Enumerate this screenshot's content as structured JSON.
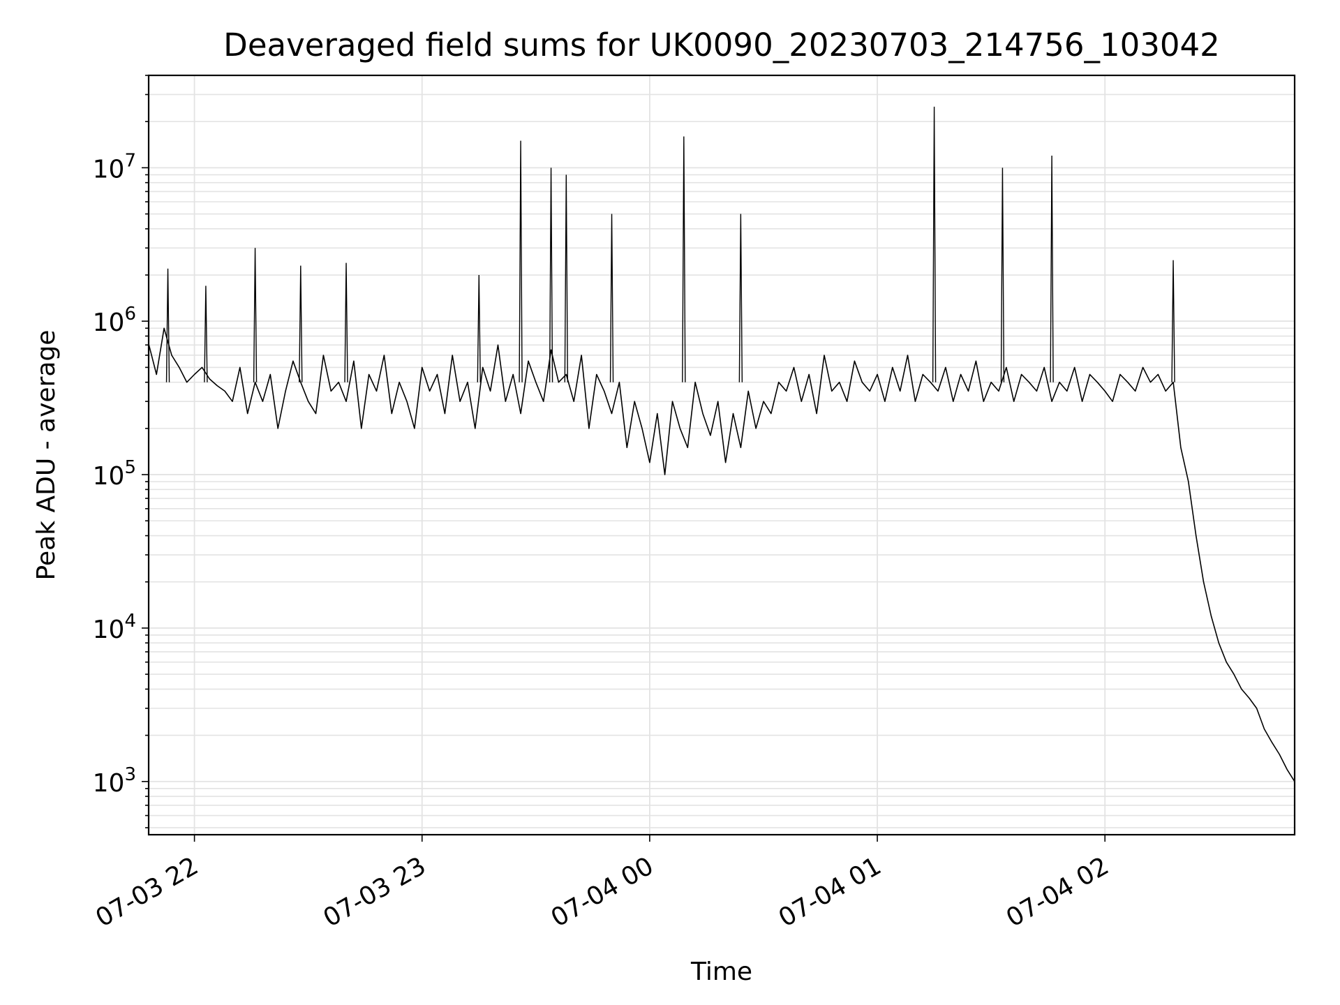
{
  "chart_data": {
    "type": "line",
    "title": "Deaveraged field sums for UK0090_20230703_214756_103042",
    "xlabel": "Time",
    "ylabel": "Peak ADU - average",
    "yscale": "log",
    "ylim": [
      450,
      40000000
    ],
    "xlim": [
      "07-03 21:47:56",
      "07-04 02:50:00"
    ],
    "grid": true,
    "x_ticks": [
      "07-03 22",
      "07-03 23",
      "07-04 00",
      "07-04 01",
      "07-04 02"
    ],
    "y_ticks": [
      {
        "base": "10",
        "exp": "3"
      },
      {
        "base": "10",
        "exp": "4"
      },
      {
        "base": "10",
        "exp": "5"
      },
      {
        "base": "10",
        "exp": "6"
      },
      {
        "base": "10",
        "exp": "7"
      }
    ],
    "line_color": "#000000",
    "series": [
      {
        "x": [
          "07-03 21:48",
          "07-03 21:50",
          "07-03 21:52",
          "07-03 21:54",
          "07-03 21:56",
          "07-03 21:58",
          "07-03 22:00",
          "07-03 22:02",
          "07-03 22:04",
          "07-03 22:06",
          "07-03 22:08",
          "07-03 22:10",
          "07-03 22:12",
          "07-03 22:14",
          "07-03 22:16",
          "07-03 22:18",
          "07-03 22:20",
          "07-03 22:22",
          "07-03 22:24",
          "07-03 22:26",
          "07-03 22:28",
          "07-03 22:30",
          "07-03 22:32",
          "07-03 22:34",
          "07-03 22:36",
          "07-03 22:38",
          "07-03 22:40",
          "07-03 22:42",
          "07-03 22:44",
          "07-03 22:46",
          "07-03 22:48",
          "07-03 22:50",
          "07-03 22:52",
          "07-03 22:54",
          "07-03 22:56",
          "07-03 22:58",
          "07-03 23:00",
          "07-03 23:02",
          "07-03 23:04",
          "07-03 23:06",
          "07-03 23:08",
          "07-03 23:10",
          "07-03 23:12",
          "07-03 23:14",
          "07-03 23:16",
          "07-03 23:18",
          "07-03 23:20",
          "07-03 23:22",
          "07-03 23:24",
          "07-03 23:26",
          "07-03 23:28",
          "07-03 23:30",
          "07-03 23:32",
          "07-03 23:34",
          "07-03 23:36",
          "07-03 23:38",
          "07-03 23:40",
          "07-03 23:42",
          "07-03 23:44",
          "07-03 23:46",
          "07-03 23:48",
          "07-03 23:50",
          "07-03 23:52",
          "07-03 23:54",
          "07-03 23:56",
          "07-03 23:58",
          "07-04 00:00",
          "07-04 00:02",
          "07-04 00:04",
          "07-04 00:06",
          "07-04 00:08",
          "07-04 00:10",
          "07-04 00:12",
          "07-04 00:14",
          "07-04 00:16",
          "07-04 00:18",
          "07-04 00:20",
          "07-04 00:22",
          "07-04 00:24",
          "07-04 00:26",
          "07-04 00:28",
          "07-04 00:30",
          "07-04 00:32",
          "07-04 00:34",
          "07-04 00:36",
          "07-04 00:38",
          "07-04 00:40",
          "07-04 00:42",
          "07-04 00:44",
          "07-04 00:46",
          "07-04 00:48",
          "07-04 00:50",
          "07-04 00:52",
          "07-04 00:54",
          "07-04 00:56",
          "07-04 00:58",
          "07-04 01:00",
          "07-04 01:02",
          "07-04 01:04",
          "07-04 01:06",
          "07-04 01:08",
          "07-04 01:10",
          "07-04 01:12",
          "07-04 01:14",
          "07-04 01:16",
          "07-04 01:18",
          "07-04 01:20",
          "07-04 01:22",
          "07-04 01:24",
          "07-04 01:26",
          "07-04 01:28",
          "07-04 01:30",
          "07-04 01:32",
          "07-04 01:34",
          "07-04 01:36",
          "07-04 01:38",
          "07-04 01:40",
          "07-04 01:42",
          "07-04 01:44",
          "07-04 01:46",
          "07-04 01:48",
          "07-04 01:50",
          "07-04 01:52",
          "07-04 01:54",
          "07-04 01:56",
          "07-04 01:58",
          "07-04 02:00",
          "07-04 02:02",
          "07-04 02:04",
          "07-04 02:06",
          "07-04 02:08",
          "07-04 02:10",
          "07-04 02:12",
          "07-04 02:14",
          "07-04 02:16",
          "07-04 02:18",
          "07-04 02:20",
          "07-04 02:22",
          "07-04 02:24",
          "07-04 02:26",
          "07-04 02:28",
          "07-04 02:30",
          "07-04 02:32",
          "07-04 02:34",
          "07-04 02:36",
          "07-04 02:38",
          "07-04 02:40",
          "07-04 02:42",
          "07-04 02:44",
          "07-04 02:46",
          "07-04 02:48",
          "07-04 02:50"
        ],
        "y": [
          700000,
          450000,
          900000,
          600000,
          500000,
          400000,
          450000,
          500000,
          420000,
          380000,
          350000,
          300000,
          500000,
          250000,
          400000,
          300000,
          450000,
          200000,
          350000,
          550000,
          400000,
          300000,
          250000,
          600000,
          350000,
          400000,
          300000,
          550000,
          200000,
          450000,
          350000,
          600000,
          250000,
          400000,
          300000,
          200000,
          500000,
          350000,
          450000,
          250000,
          600000,
          300000,
          400000,
          200000,
          500000,
          350000,
          700000,
          300000,
          450000,
          250000,
          550000,
          400000,
          300000,
          650000,
          400000,
          450000,
          300000,
          600000,
          200000,
          450000,
          350000,
          250000,
          400000,
          150000,
          300000,
          200000,
          120000,
          250000,
          100000,
          300000,
          200000,
          150000,
          400000,
          250000,
          180000,
          300000,
          120000,
          250000,
          150000,
          350000,
          200000,
          300000,
          250000,
          400000,
          350000,
          500000,
          300000,
          450000,
          250000,
          600000,
          350000,
          400000,
          300000,
          550000,
          400000,
          350000,
          450000,
          300000,
          500000,
          350000,
          600000,
          300000,
          450000,
          400000,
          350000,
          500000,
          300000,
          450000,
          350000,
          550000,
          300000,
          400000,
          350000,
          500000,
          300000,
          450000,
          400000,
          350000,
          500000,
          300000,
          400000,
          350000,
          500000,
          300000,
          450000,
          400000,
          350000,
          300000,
          450000,
          400000,
          350000,
          500000,
          400000,
          450000,
          350000,
          400000,
          150000,
          90000,
          40000,
          20000,
          12000,
          8000,
          6000,
          5000,
          4000,
          3500,
          3000,
          2200,
          1800,
          1500,
          1200,
          1000
        ]
      }
    ],
    "spikes": [
      {
        "x": "07-03 21:53",
        "y": 2200000
      },
      {
        "x": "07-03 22:03",
        "y": 1700000
      },
      {
        "x": "07-03 22:16",
        "y": 3000000
      },
      {
        "x": "07-03 22:28",
        "y": 2300000
      },
      {
        "x": "07-03 22:40",
        "y": 2400000
      },
      {
        "x": "07-03 23:15",
        "y": 2000000
      },
      {
        "x": "07-03 23:26",
        "y": 15000000
      },
      {
        "x": "07-03 23:34",
        "y": 10000000
      },
      {
        "x": "07-03 23:38",
        "y": 9000000
      },
      {
        "x": "07-03 23:50",
        "y": 5000000
      },
      {
        "x": "07-04 00:09",
        "y": 16000000
      },
      {
        "x": "07-04 00:24",
        "y": 5000000
      },
      {
        "x": "07-04 01:15",
        "y": 25000000
      },
      {
        "x": "07-04 01:33",
        "y": 10000000
      },
      {
        "x": "07-04 01:46",
        "y": 12000000
      },
      {
        "x": "07-04 02:18",
        "y": 2500000
      }
    ]
  }
}
